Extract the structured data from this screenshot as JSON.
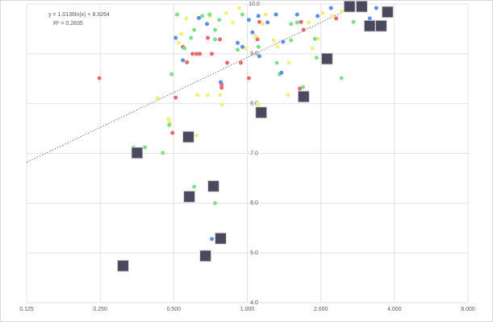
{
  "chart_data": {
    "type": "scatter",
    "annotation": {
      "equation": "y = 1.0136ln(x) + 8.9264",
      "r2": "R² = 0.2635"
    },
    "trendline": {
      "kind": "log",
      "a": 1.0136,
      "b": 8.9264,
      "color": "#777777"
    },
    "xlog_base": 2,
    "grid": true,
    "xlim": [
      0.125,
      8
    ],
    "ylim": [
      4,
      10
    ],
    "xticks": [
      {
        "value": 0.125,
        "label": "0.125"
      },
      {
        "value": 0.25,
        "label": "0.250"
      },
      {
        "value": 0.5,
        "label": "0.500"
      },
      {
        "value": 1,
        "label": "1.000"
      },
      {
        "value": 2,
        "label": "2.000"
      },
      {
        "value": 4,
        "label": "4.000"
      },
      {
        "value": 8,
        "label": "8.000"
      }
    ],
    "yticks": [
      {
        "value": 4,
        "label": "4.0"
      },
      {
        "value": 5,
        "label": "5.0"
      },
      {
        "value": 6,
        "label": "6.0"
      },
      {
        "value": 7,
        "label": "7.0"
      },
      {
        "value": 8,
        "label": "8.0"
      },
      {
        "value": 9,
        "label": "9.0"
      },
      {
        "value": 10,
        "label": "10.0"
      }
    ],
    "series": [
      {
        "color": "#e8696b",
        "marker": "circle",
        "x": [
          0.248,
          0.509,
          0.494,
          0.545,
          0.566,
          0.597,
          0.62,
          0.639,
          0.689,
          0.716,
          0.773,
          0.785,
          0.785,
          0.827,
          0.941,
          1.015,
          1.1,
          1.12,
          1.64,
          1.66,
          1.7,
          2.31
        ],
        "values": [
          8.51,
          8.12,
          7.41,
          9.14,
          8.83,
          9.0,
          9.0,
          9.0,
          9.32,
          9.0,
          9.29,
          8.38,
          8.32,
          8.82,
          8.82,
          8.51,
          9.29,
          9.64,
          8.3,
          9.64,
          9.48,
          9.71
        ]
      },
      {
        "color": "#f3f07c",
        "marker": "circle",
        "x": [
          0.43,
          0.475,
          0.483,
          0.524,
          0.537,
          0.562,
          0.62,
          0.625,
          0.689,
          0.705,
          0.773,
          0.79,
          0.82,
          0.872,
          0.927,
          0.985,
          1.08,
          1.11,
          1.155,
          1.19,
          1.28,
          1.33,
          1.47,
          1.48,
          1.78,
          1.85,
          1.94,
          2.04,
          2.24,
          2.43
        ],
        "values": [
          8.11,
          7.69,
          7.62,
          9.22,
          9.4,
          9.71,
          7.36,
          8.17,
          8.17,
          9.76,
          8.17,
          7.98,
          9.82,
          9.63,
          9.92,
          9.11,
          9.35,
          7.98,
          9.6,
          9.79,
          9.27,
          9.14,
          8.17,
          8.82,
          9.63,
          9.11,
          9.3,
          9.82,
          9.76,
          9.85
        ]
      },
      {
        "color": "#7ee08c",
        "marker": "circle",
        "x": [
          0.343,
          0.381,
          0.451,
          0.479,
          0.49,
          0.516,
          0.553,
          0.588,
          0.606,
          0.606,
          0.654,
          0.7,
          0.738,
          0.738,
          0.767,
          0.738,
          0.913,
          0.955,
          1.11,
          1.32,
          1.355,
          1.51,
          1.51,
          1.6,
          1.69,
          1.89,
          1.92,
          2.43,
          2.72,
          0.32
        ],
        "values": [
          7.12,
          7.12,
          7.01,
          7.57,
          8.59,
          9.79,
          9.11,
          9.32,
          6.33,
          9.48,
          9.76,
          9.79,
          9.48,
          9.29,
          9.68,
          6.0,
          9.08,
          9.79,
          9.14,
          8.82,
          8.59,
          9.6,
          9.27,
          9.63,
          8.33,
          9.3,
          8.92,
          8.51,
          9.64,
          4.74
        ]
      },
      {
        "color": "#5b8ee6",
        "marker": "circle",
        "x": [
          0.509,
          0.545,
          0.634,
          0.716,
          0.684,
          0.778,
          0.913,
          0.955,
          1.015,
          1.05,
          1.11,
          1.12,
          1.21,
          1.31,
          1.38,
          1.4,
          1.6,
          1.94,
          2.2,
          3.17,
          3.37
        ],
        "values": [
          9.32,
          8.87,
          9.72,
          5.28,
          9.6,
          8.43,
          9.22,
          9.14,
          9.68,
          9.43,
          9.76,
          8.95,
          9.63,
          9.79,
          8.62,
          9.24,
          9.79,
          9.76,
          9.92,
          9.71,
          9.92
        ]
      },
      {
        "color": "#4a4a5e",
        "marker": "image",
        "x": [
          0.354,
          0.574,
          0.579,
          0.727,
          0.778,
          0.674,
          0.31,
          1.14,
          1.7,
          2.12,
          2.62,
          2.94,
          3.75,
          3.17,
          3.53
        ],
        "values": [
          7.01,
          7.33,
          6.13,
          6.34,
          5.29,
          4.94,
          4.74,
          7.82,
          8.14,
          8.9,
          9.95,
          9.95,
          9.84,
          9.56,
          9.56
        ]
      }
    ]
  }
}
